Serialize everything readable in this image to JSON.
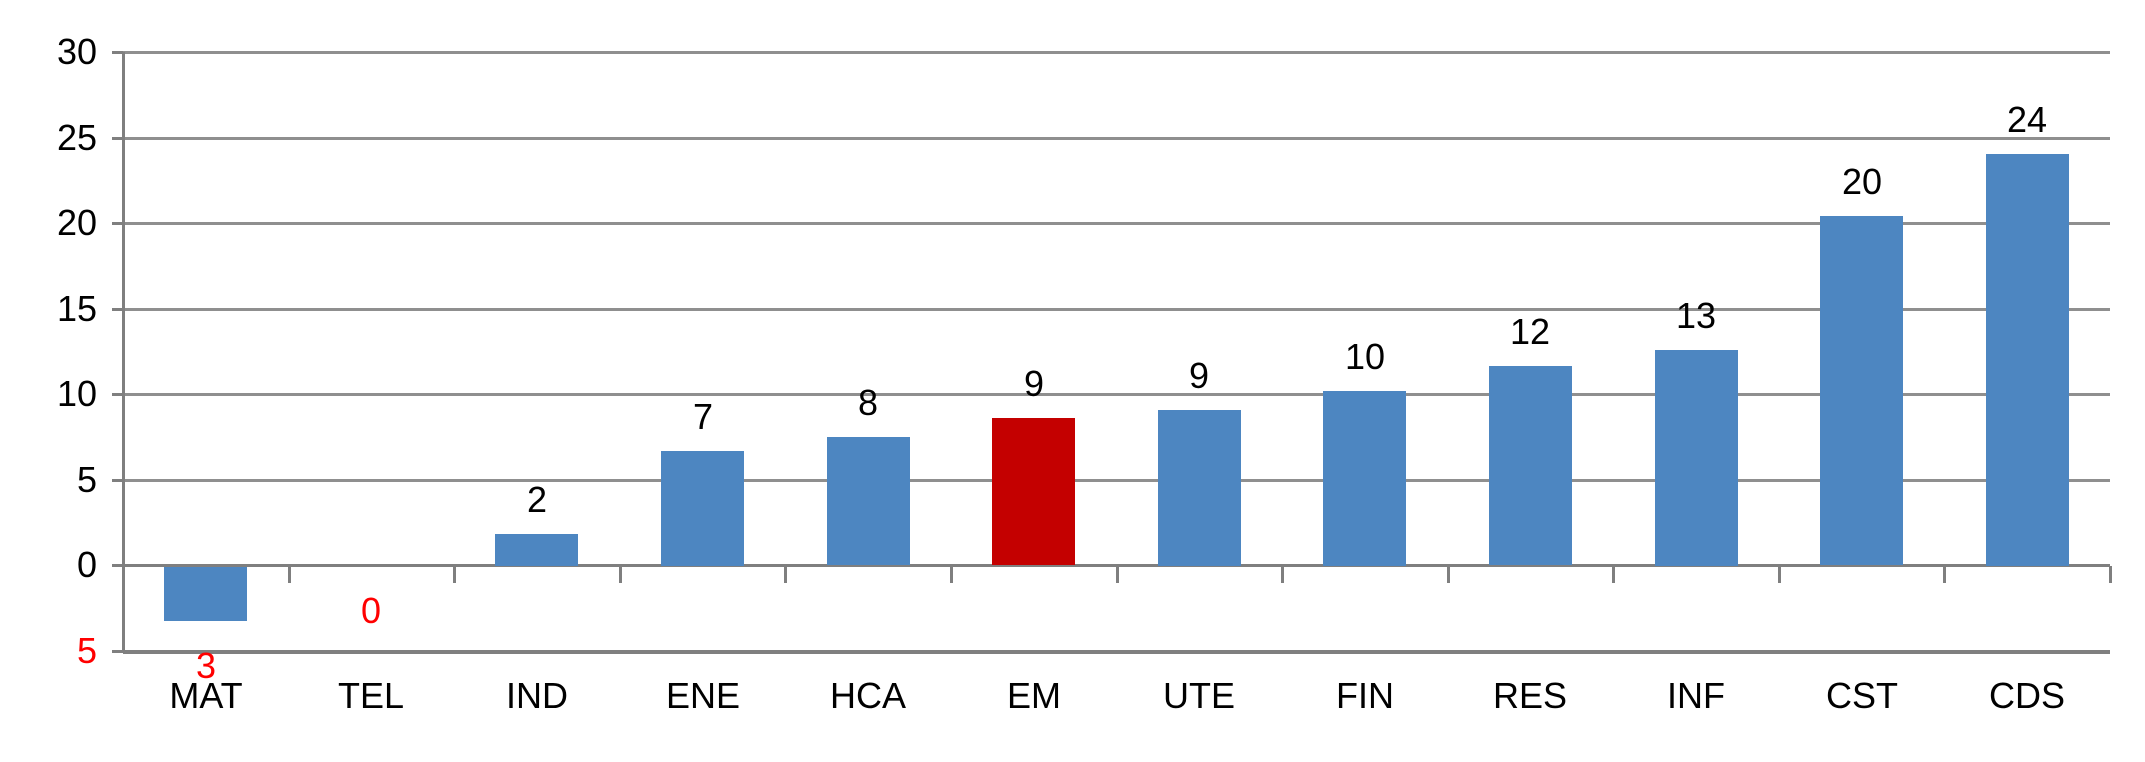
{
  "chart_data": {
    "type": "bar",
    "title": "",
    "legend": false,
    "grid": true,
    "background": "#ffffff",
    "categories": [
      "MAT",
      "TEL",
      "IND",
      "ENE",
      "HCA",
      "EM",
      "UTE",
      "FIN",
      "RES",
      "INF",
      "CST",
      "CDS"
    ],
    "values": [
      -3,
      0,
      2,
      7,
      8,
      9,
      9,
      10,
      12,
      13,
      20,
      24
    ],
    "bar_visual_values": [
      -3.15,
      0,
      1.85,
      6.7,
      7.5,
      8.6,
      9.1,
      10.2,
      11.65,
      12.6,
      20.4,
      24.05
    ],
    "data_labels": [
      {
        "text": "3",
        "color": "#ff0000",
        "position": "below-plot"
      },
      {
        "text": "0",
        "color": "#ff0000",
        "position": "below-axis"
      },
      {
        "text": "2",
        "color": "#000000",
        "position": "above"
      },
      {
        "text": "7",
        "color": "#000000",
        "position": "above"
      },
      {
        "text": "8",
        "color": "#000000",
        "position": "above"
      },
      {
        "text": "9",
        "color": "#000000",
        "position": "above"
      },
      {
        "text": "9",
        "color": "#000000",
        "position": "above"
      },
      {
        "text": "10",
        "color": "#000000",
        "position": "above"
      },
      {
        "text": "12",
        "color": "#000000",
        "position": "above"
      },
      {
        "text": "13",
        "color": "#000000",
        "position": "above"
      },
      {
        "text": "20",
        "color": "#000000",
        "position": "above"
      },
      {
        "text": "24",
        "color": "#000000",
        "position": "above"
      }
    ],
    "highlight_index": 5,
    "highlight_category": "EM",
    "colors": {
      "bar": "#4d86c1",
      "highlight_bar": "#c40000",
      "grid": "#8f8f8f",
      "axis": "#7f7f7f",
      "label": "#000000",
      "negative_label": "#ff0000"
    },
    "y_axis": {
      "min": -5,
      "max": 30,
      "step": 5,
      "ticks": [
        {
          "value": 30,
          "label": "30",
          "color": "#000000"
        },
        {
          "value": 25,
          "label": "25",
          "color": "#000000"
        },
        {
          "value": 20,
          "label": "20",
          "color": "#000000"
        },
        {
          "value": 15,
          "label": "15",
          "color": "#000000"
        },
        {
          "value": 10,
          "label": "10",
          "color": "#000000"
        },
        {
          "value": 5,
          "label": "5",
          "color": "#000000"
        },
        {
          "value": 0,
          "label": "0",
          "color": "#000000"
        },
        {
          "value": -5,
          "label": "5",
          "color": "#ff0000"
        }
      ]
    },
    "x_axis": {
      "position_value": 0,
      "tick_marks": "category-boundaries"
    }
  }
}
